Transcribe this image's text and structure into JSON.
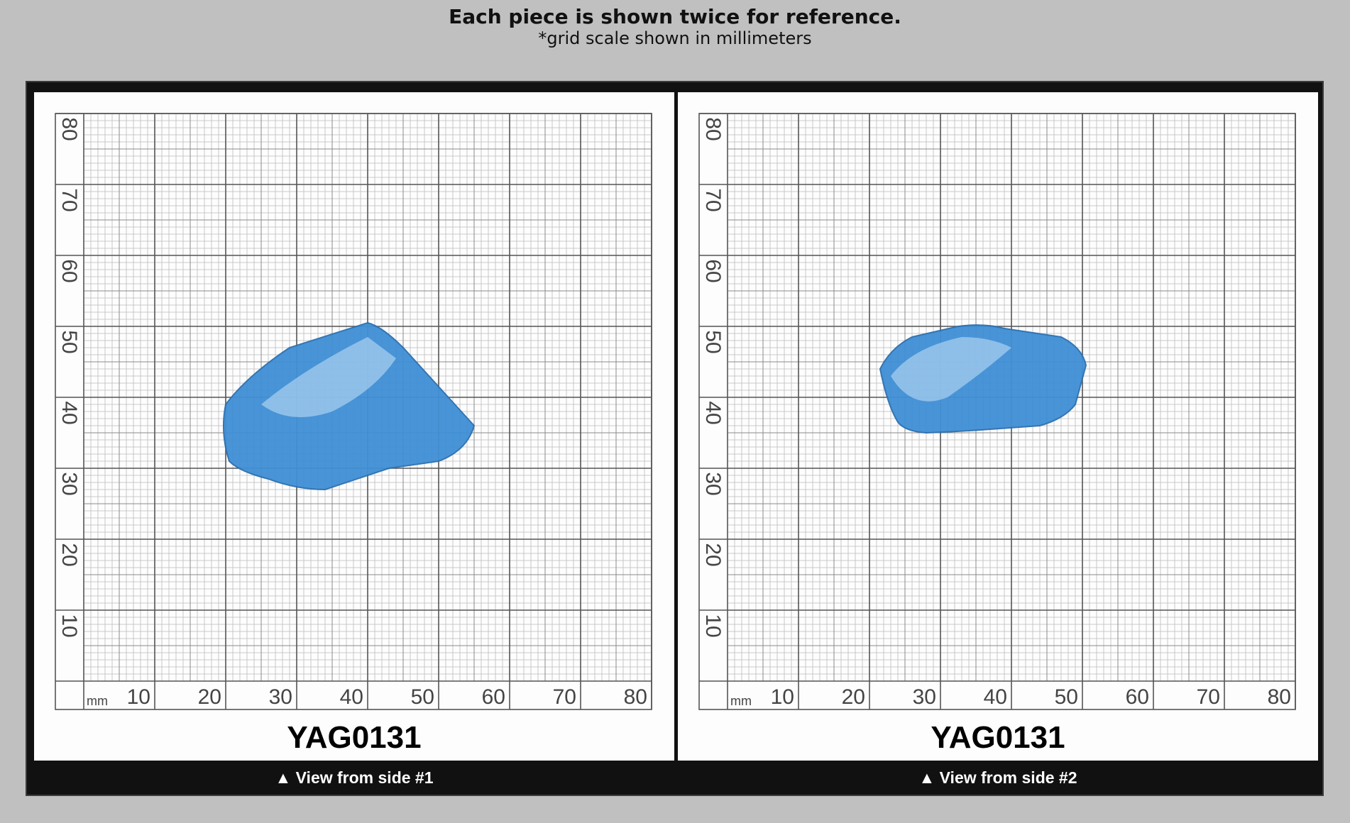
{
  "header": {
    "title": "Each piece is shown twice for reference.",
    "subtitle": "*grid scale shown in millimeters"
  },
  "grid": {
    "unit_label": "mm",
    "x_ticks": [
      "10",
      "20",
      "30",
      "40",
      "50",
      "60",
      "70",
      "80"
    ],
    "y_ticks": [
      "10",
      "20",
      "30",
      "40",
      "50",
      "60",
      "70",
      "80"
    ]
  },
  "panels": [
    {
      "specimen_id": "YAG0131",
      "caption": "▲ View from side #1",
      "stone_color": "#3f8fd6"
    },
    {
      "specimen_id": "YAG0131",
      "caption": "▲ View from side #2",
      "stone_color": "#3f8fd6"
    }
  ],
  "colors": {
    "background": "#c0c0c0",
    "frame": "#111111",
    "grid_major": "#555555",
    "grid_minor": "#bbbbbb"
  }
}
